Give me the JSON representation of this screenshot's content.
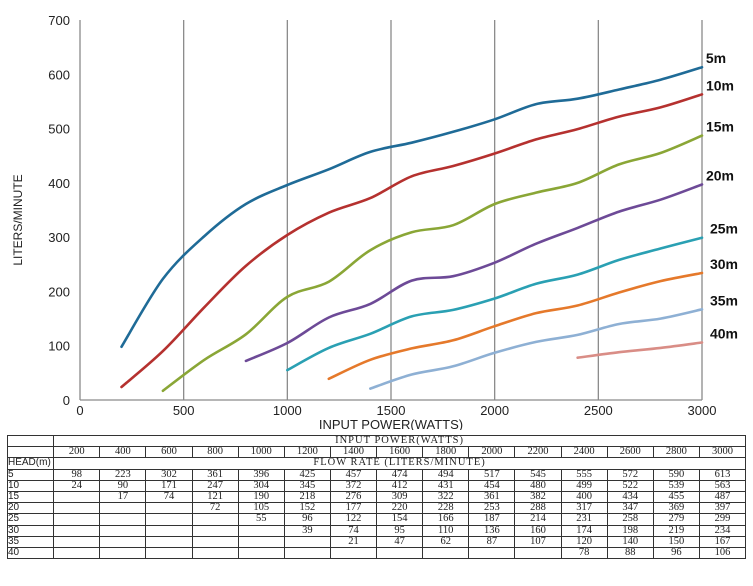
{
  "chart_data": {
    "type": "line",
    "xlabel": "INPUT POWER(WATTS)",
    "ylabel": "LITERS/MINUTE",
    "xlim": [
      0,
      3000
    ],
    "ylim": [
      0,
      700
    ],
    "xticks": [
      "0",
      "500",
      "1000",
      "1500",
      "2000",
      "2500",
      "3000"
    ],
    "yticks": [
      "0",
      "100",
      "200",
      "300",
      "400",
      "500",
      "600",
      "700"
    ],
    "grid": "vertical",
    "x": [
      200,
      400,
      600,
      800,
      1000,
      1200,
      1400,
      1600,
      1800,
      2000,
      2200,
      2400,
      2600,
      2800,
      3000
    ],
    "series": [
      {
        "name": "5m",
        "color": "#1f6b97",
        "values": [
          98,
          223,
          302,
          361,
          396,
          425,
          457,
          474,
          494,
          517,
          545,
          555,
          572,
          590,
          613
        ]
      },
      {
        "name": "10m",
        "color": "#b5312f",
        "values": [
          24,
          90,
          171,
          247,
          304,
          345,
          372,
          412,
          431,
          454,
          480,
          499,
          522,
          539,
          563
        ]
      },
      {
        "name": "15m",
        "color": "#8aa636",
        "values": [
          null,
          17,
          74,
          121,
          190,
          218,
          276,
          309,
          322,
          361,
          382,
          400,
          434,
          455,
          487
        ]
      },
      {
        "name": "20m",
        "color": "#6d4a97",
        "values": [
          null,
          null,
          null,
          72,
          105,
          152,
          177,
          220,
          228,
          253,
          288,
          317,
          347,
          369,
          397
        ]
      },
      {
        "name": "25m",
        "color": "#2aa0b3",
        "values": [
          null,
          null,
          null,
          null,
          55,
          96,
          122,
          154,
          166,
          187,
          214,
          231,
          258,
          279,
          299
        ]
      },
      {
        "name": "30m",
        "color": "#e5792b",
        "values": [
          null,
          null,
          null,
          null,
          null,
          39,
          74,
          95,
          110,
          136,
          160,
          174,
          198,
          219,
          234
        ]
      },
      {
        "name": "35m",
        "color": "#8eb0d4",
        "values": [
          null,
          null,
          null,
          null,
          null,
          null,
          21,
          47,
          62,
          87,
          107,
          120,
          140,
          150,
          167
        ]
      },
      {
        "name": "40m",
        "color": "#d98d86",
        "values": [
          null,
          null,
          null,
          null,
          null,
          null,
          null,
          null,
          null,
          null,
          null,
          78,
          88,
          96,
          106
        ]
      }
    ]
  },
  "table": {
    "head_label": "HEAD(m)",
    "power_caption": "INPUT POWER(WATTS)",
    "flow_caption": "FLOW RATE (LITERS/MINUTE)",
    "powers": [
      "200",
      "400",
      "600",
      "800",
      "1000",
      "1200",
      "1400",
      "1600",
      "1800",
      "2000",
      "2200",
      "2400",
      "2600",
      "2800",
      "3000"
    ],
    "rows": [
      {
        "head": "5",
        "cells": [
          "98",
          "223",
          "302",
          "361",
          "396",
          "425",
          "457",
          "474",
          "494",
          "517",
          "545",
          "555",
          "572",
          "590",
          "613"
        ]
      },
      {
        "head": "10",
        "cells": [
          "24",
          "90",
          "171",
          "247",
          "304",
          "345",
          "372",
          "412",
          "431",
          "454",
          "480",
          "499",
          "522",
          "539",
          "563"
        ]
      },
      {
        "head": "15",
        "cells": [
          "",
          "17",
          "74",
          "121",
          "190",
          "218",
          "276",
          "309",
          "322",
          "361",
          "382",
          "400",
          "434",
          "455",
          "487"
        ]
      },
      {
        "head": "20",
        "cells": [
          "",
          "",
          "",
          "72",
          "105",
          "152",
          "177",
          "220",
          "228",
          "253",
          "288",
          "317",
          "347",
          "369",
          "397"
        ]
      },
      {
        "head": "25",
        "cells": [
          "",
          "",
          "",
          "",
          "55",
          "96",
          "122",
          "154",
          "166",
          "187",
          "214",
          "231",
          "258",
          "279",
          "299"
        ]
      },
      {
        "head": "30",
        "cells": [
          "",
          "",
          "",
          "",
          "",
          "39",
          "74",
          "95",
          "110",
          "136",
          "160",
          "174",
          "198",
          "219",
          "234"
        ]
      },
      {
        "head": "35",
        "cells": [
          "",
          "",
          "",
          "",
          "",
          "",
          "21",
          "47",
          "62",
          "87",
          "107",
          "120",
          "140",
          "150",
          "167"
        ]
      },
      {
        "head": "40",
        "cells": [
          "",
          "",
          "",
          "",
          "",
          "",
          "",
          "",
          "",
          "",
          "",
          "78",
          "88",
          "96",
          "106"
        ]
      }
    ]
  }
}
